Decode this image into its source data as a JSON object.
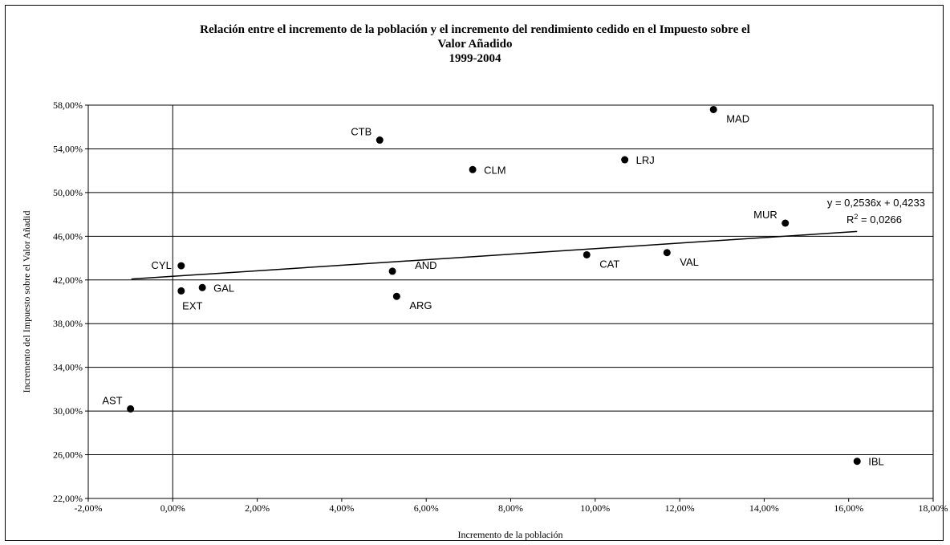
{
  "chart_data": {
    "type": "scatter",
    "title_lines": [
      "Relación entre el incremento de la población y el incremento del rendimiento cedido en el Impuesto sobre el",
      "Valor Añadido",
      "1999-2004"
    ],
    "xlabel": "Incremento de la población",
    "ylabel": "Incremento del Impuesto sobre el Valor Añadid",
    "xlim": [
      -0.02,
      0.18
    ],
    "ylim": [
      0.22,
      0.58
    ],
    "x_ticks": [
      -0.02,
      0.0,
      0.02,
      0.04,
      0.06,
      0.08,
      0.1,
      0.12,
      0.14,
      0.16,
      0.18
    ],
    "x_tick_labels": [
      "-2,00%",
      "0,00%",
      "2,00%",
      "4,00%",
      "6,00%",
      "8,00%",
      "10,00%",
      "12,00%",
      "14,00%",
      "16,00%",
      "18,00%"
    ],
    "y_ticks": [
      0.22,
      0.26,
      0.3,
      0.34,
      0.38,
      0.42,
      0.46,
      0.5,
      0.54,
      0.58
    ],
    "y_tick_labels": [
      "22,00%",
      "26,00%",
      "30,00%",
      "34,00%",
      "38,00%",
      "42,00%",
      "46,00%",
      "50,00%",
      "54,00%",
      "58,00%"
    ],
    "grid": "horizontal",
    "points": [
      {
        "label": "MAD",
        "x": 0.128,
        "y": 0.576,
        "pos": "lower-right"
      },
      {
        "label": "CTB",
        "x": 0.049,
        "y": 0.548,
        "pos": "upper-left"
      },
      {
        "label": "CLM",
        "x": 0.071,
        "y": 0.521,
        "pos": "right"
      },
      {
        "label": "LRJ",
        "x": 0.107,
        "y": 0.53,
        "pos": "right"
      },
      {
        "label": "MUR",
        "x": 0.145,
        "y": 0.472,
        "pos": "upper-left"
      },
      {
        "label": "CYL",
        "x": 0.002,
        "y": 0.433,
        "pos": "left"
      },
      {
        "label": "AND",
        "x": 0.052,
        "y": 0.428,
        "pos": "upper-right"
      },
      {
        "label": "CAT",
        "x": 0.098,
        "y": 0.443,
        "pos": "lower-right"
      },
      {
        "label": "VAL",
        "x": 0.117,
        "y": 0.445,
        "pos": "lower-right"
      },
      {
        "label": "EXT",
        "x": 0.002,
        "y": 0.41,
        "pos": "below"
      },
      {
        "label": "GAL",
        "x": 0.007,
        "y": 0.413,
        "pos": "right"
      },
      {
        "label": "ARG",
        "x": 0.053,
        "y": 0.405,
        "pos": "lower-right"
      },
      {
        "label": "AST",
        "x": -0.01,
        "y": 0.302,
        "pos": "upper-left"
      },
      {
        "label": "IBL",
        "x": 0.162,
        "y": 0.254,
        "pos": "right"
      }
    ],
    "trendline": {
      "slope": 0.2536,
      "intercept": 0.4233,
      "x_range": [
        -0.0098,
        0.162
      ],
      "equation": "y = 0,2536x + 0,4233",
      "r2_prefix": "R",
      "r2_sup": "2",
      "r2_value": " = 0,0266"
    }
  }
}
